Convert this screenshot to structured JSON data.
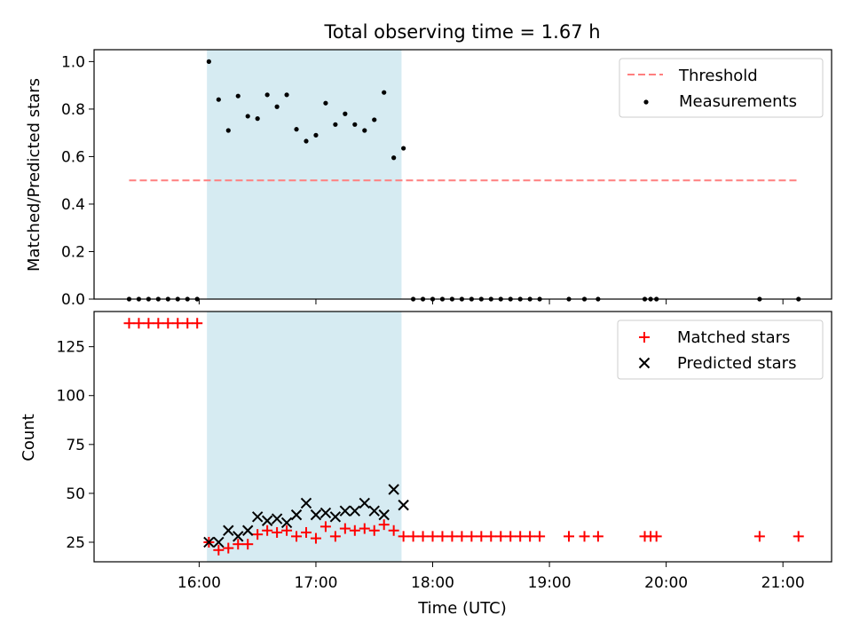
{
  "title": "Total observing time = 1.67 h",
  "colors": {
    "threshold": "#ff7f7f",
    "shade": "#add8e6",
    "measurement": "#000000",
    "matched": "#ff0000",
    "predicted": "#000000"
  },
  "chart_data": [
    {
      "type": "scatter",
      "title": "Total observing time = 1.67 h",
      "xlabel": "",
      "ylabel": "Matched/Predicted stars",
      "xlim": [
        "15:06",
        "21:25"
      ],
      "ylim": [
        0,
        1.05
      ],
      "yticks": [
        "0.0",
        "0.2",
        "0.4",
        "0.6",
        "0.8",
        "1.0"
      ],
      "shaded_interval": {
        "start": "16:04",
        "end": "17:44"
      },
      "legend": {
        "position": "top-right",
        "entries": [
          "Threshold",
          "Measurements"
        ]
      },
      "threshold": {
        "name": "Threshold",
        "value": 0.5,
        "x_start": "15:24",
        "x_end": "21:08"
      },
      "series": [
        {
          "name": "Measurements",
          "x": [
            "15:24",
            "15:29",
            "15:34",
            "15:39",
            "15:44",
            "15:49",
            "15:54",
            "15:59",
            "16:05",
            "16:10",
            "16:15",
            "16:20",
            "16:25",
            "16:30",
            "16:35",
            "16:40",
            "16:45",
            "16:50",
            "16:55",
            "17:00",
            "17:05",
            "17:10",
            "17:15",
            "17:20",
            "17:25",
            "17:30",
            "17:35",
            "17:40",
            "17:45",
            "17:50",
            "17:55",
            "18:00",
            "18:05",
            "18:10",
            "18:15",
            "18:20",
            "18:25",
            "18:30",
            "18:35",
            "18:40",
            "18:45",
            "18:50",
            "18:55",
            "19:10",
            "19:18",
            "19:25",
            "19:49",
            "19:52",
            "19:55",
            "20:48",
            "21:08"
          ],
          "y": [
            0,
            0,
            0,
            0,
            0,
            0,
            0,
            0,
            1.0,
            0.84,
            0.71,
            0.855,
            0.77,
            0.76,
            0.86,
            0.81,
            0.86,
            0.715,
            0.665,
            0.69,
            0.825,
            0.735,
            0.78,
            0.735,
            0.71,
            0.755,
            0.87,
            0.595,
            0.635,
            0,
            0,
            0,
            0,
            0,
            0,
            0,
            0,
            0,
            0,
            0,
            0,
            0,
            0,
            0,
            0,
            0,
            0,
            0,
            0,
            0,
            0
          ]
        }
      ]
    },
    {
      "type": "scatter",
      "xlabel": "Time (UTC)",
      "ylabel": "Count",
      "xlim": [
        "15:06",
        "21:25"
      ],
      "ylim": [
        15,
        143
      ],
      "xticks": [
        "16:00",
        "17:00",
        "18:00",
        "19:00",
        "20:00",
        "21:00"
      ],
      "yticks": [
        "25",
        "50",
        "75",
        "100",
        "125"
      ],
      "shaded_interval": {
        "start": "16:04",
        "end": "17:44"
      },
      "legend": {
        "position": "top-right",
        "entries": [
          "Matched stars",
          "Predicted stars"
        ]
      },
      "series": [
        {
          "name": "Matched stars",
          "marker": "+",
          "x": [
            "15:24",
            "15:29",
            "15:34",
            "15:39",
            "15:44",
            "15:49",
            "15:54",
            "15:59",
            "16:05",
            "16:10",
            "16:15",
            "16:20",
            "16:25",
            "16:30",
            "16:35",
            "16:40",
            "16:45",
            "16:50",
            "16:55",
            "17:00",
            "17:05",
            "17:10",
            "17:15",
            "17:20",
            "17:25",
            "17:30",
            "17:35",
            "17:40",
            "17:45",
            "17:50",
            "17:55",
            "18:00",
            "18:05",
            "18:10",
            "18:15",
            "18:20",
            "18:25",
            "18:30",
            "18:35",
            "18:40",
            "18:45",
            "18:50",
            "18:55",
            "19:10",
            "19:18",
            "19:25",
            "19:49",
            "19:52",
            "19:55",
            "20:48",
            "21:08"
          ],
          "y": [
            137,
            137,
            137,
            137,
            137,
            137,
            137,
            137,
            25,
            21,
            22,
            24,
            24,
            29,
            31,
            30,
            31,
            28,
            30,
            27,
            33,
            28,
            32,
            31,
            32,
            31,
            34,
            31,
            28,
            28,
            28,
            28,
            28,
            28,
            28,
            28,
            28,
            28,
            28,
            28,
            28,
            28,
            28,
            28,
            28,
            28,
            28,
            28,
            28,
            28,
            28
          ]
        },
        {
          "name": "Predicted stars",
          "marker": "x",
          "x": [
            "16:05",
            "16:10",
            "16:15",
            "16:20",
            "16:25",
            "16:30",
            "16:35",
            "16:40",
            "16:45",
            "16:50",
            "16:55",
            "17:00",
            "17:05",
            "17:10",
            "17:15",
            "17:20",
            "17:25",
            "17:30",
            "17:35",
            "17:40",
            "17:45"
          ],
          "y": [
            25,
            25,
            31,
            28,
            31,
            38,
            36,
            37,
            35,
            39,
            45,
            39,
            40,
            38,
            41,
            41,
            45,
            41,
            39,
            52,
            44
          ]
        }
      ]
    }
  ]
}
